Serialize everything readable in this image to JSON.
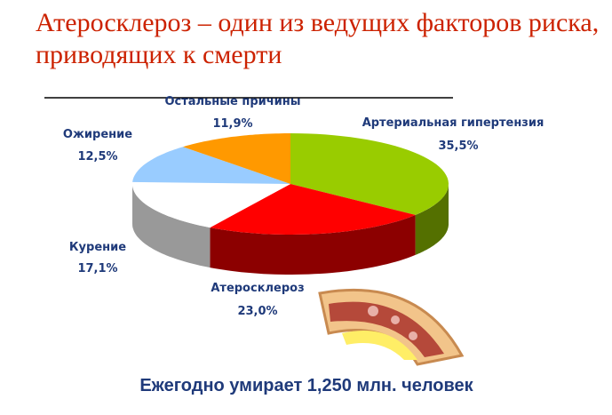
{
  "chart_data": {
    "type": "pie",
    "title": "Атеросклероз – один из ведущих факторов риска, приводящих к смерти",
    "categories": [
      "Артериальная гипертензия",
      "Атеросклероз",
      "Курение",
      "Ожирение",
      "Остальные причины"
    ],
    "values": [
      35.5,
      23.0,
      17.1,
      12.5,
      11.9
    ],
    "value_labels": [
      "35,5%",
      "23,0%",
      "17,1%",
      "12,5%",
      "11,9%"
    ],
    "colors": [
      "#99cc00",
      "#ff0000",
      "#ffffff",
      "#99ccff",
      "#ff9900"
    ],
    "annotation": "Ежегодно умирает 1,250 млн. человек"
  }
}
